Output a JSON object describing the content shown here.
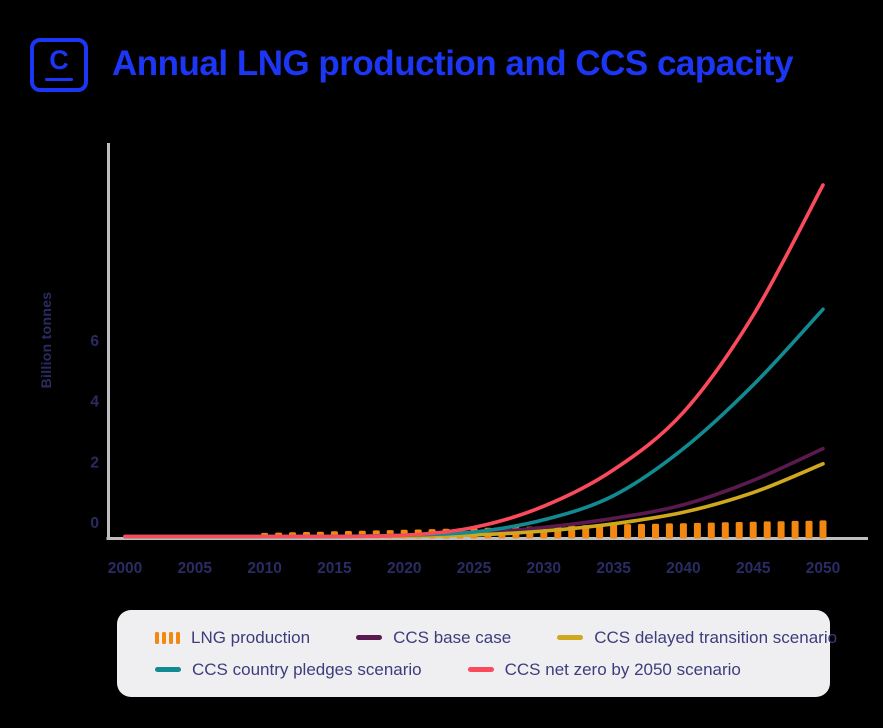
{
  "header": {
    "logo_letter": "C",
    "title": "Annual LNG production and CCS capacity"
  },
  "colors": {
    "accent_blue": "#1C36F6",
    "background": "#000000",
    "axis_gray": "#BEBEBE",
    "tick_text": "#2B2B63",
    "legend_background": "#EFEFF1",
    "legend_text": "#3D3D7C",
    "lng_orange": "#F28711",
    "base_case_purple": "#5A1A4E",
    "delayed_yellow": "#D0A81E",
    "pledges_teal": "#128A92",
    "net_zero_red": "#FA4A5C"
  },
  "chart_data": {
    "type": "mixed-bar-line",
    "title": "Annual LNG production and CCS capacity",
    "xlabel": "",
    "ylabel": "Billion tonnes",
    "xlim": [
      2000,
      2050
    ],
    "ylim": [
      0,
      13
    ],
    "grid": false,
    "legend_position": "bottom",
    "yticks": [
      0,
      2,
      4,
      6
    ],
    "xticks": [
      2000,
      2005,
      2010,
      2015,
      2020,
      2025,
      2030,
      2035,
      2040,
      2045,
      2050
    ],
    "anchor_years": [
      2000,
      2005,
      2010,
      2015,
      2020,
      2025,
      2030,
      2035,
      2040,
      2045,
      2050
    ],
    "bar_series": {
      "name": "LNG production",
      "color": "#F28711",
      "unit": "billion tonnes",
      "bar_interval_years": 1,
      "first_bar_year": 2010,
      "last_bar_year": 2050,
      "anchor_values": [
        0,
        0,
        0.12,
        0.17,
        0.22,
        0.28,
        0.34,
        0.4,
        0.44,
        0.49,
        0.53
      ]
    },
    "line_series": [
      {
        "name": "CCS base case",
        "color": "#5A1A4E",
        "values": [
          0,
          0,
          0,
          0,
          0.04,
          0.1,
          0.3,
          0.6,
          1.05,
          1.85,
          2.9
        ]
      },
      {
        "name": "CCS delayed transition scenario",
        "color": "#D0A81E",
        "values": [
          0,
          0,
          0,
          0,
          0.0,
          0.05,
          0.18,
          0.42,
          0.8,
          1.45,
          2.4
        ]
      },
      {
        "name": "CCS country pledges scenario",
        "color": "#128A92",
        "values": [
          0,
          0,
          0,
          0,
          0.04,
          0.15,
          0.55,
          1.35,
          2.9,
          5.0,
          7.5
        ]
      },
      {
        "name": "CCS net zero by 2050 scenario",
        "color": "#FA4A5C",
        "values": [
          0,
          0,
          0,
          0,
          0.04,
          0.3,
          1.0,
          2.2,
          4.1,
          7.3,
          11.6
        ]
      }
    ]
  },
  "legend": {
    "rows": [
      [
        {
          "label": "LNG production",
          "color": "#F28711",
          "swatch": "bars"
        },
        {
          "label": "CCS base case",
          "color": "#5A1A4E",
          "swatch": "line"
        },
        {
          "label": "CCS delayed transition scenario",
          "color": "#D0A81E",
          "swatch": "line"
        }
      ],
      [
        {
          "label": "CCS country pledges scenario",
          "color": "#128A92",
          "swatch": "line"
        },
        {
          "label": "CCS net zero by 2050 scenario",
          "color": "#FA4A5C",
          "swatch": "line"
        }
      ]
    ]
  }
}
